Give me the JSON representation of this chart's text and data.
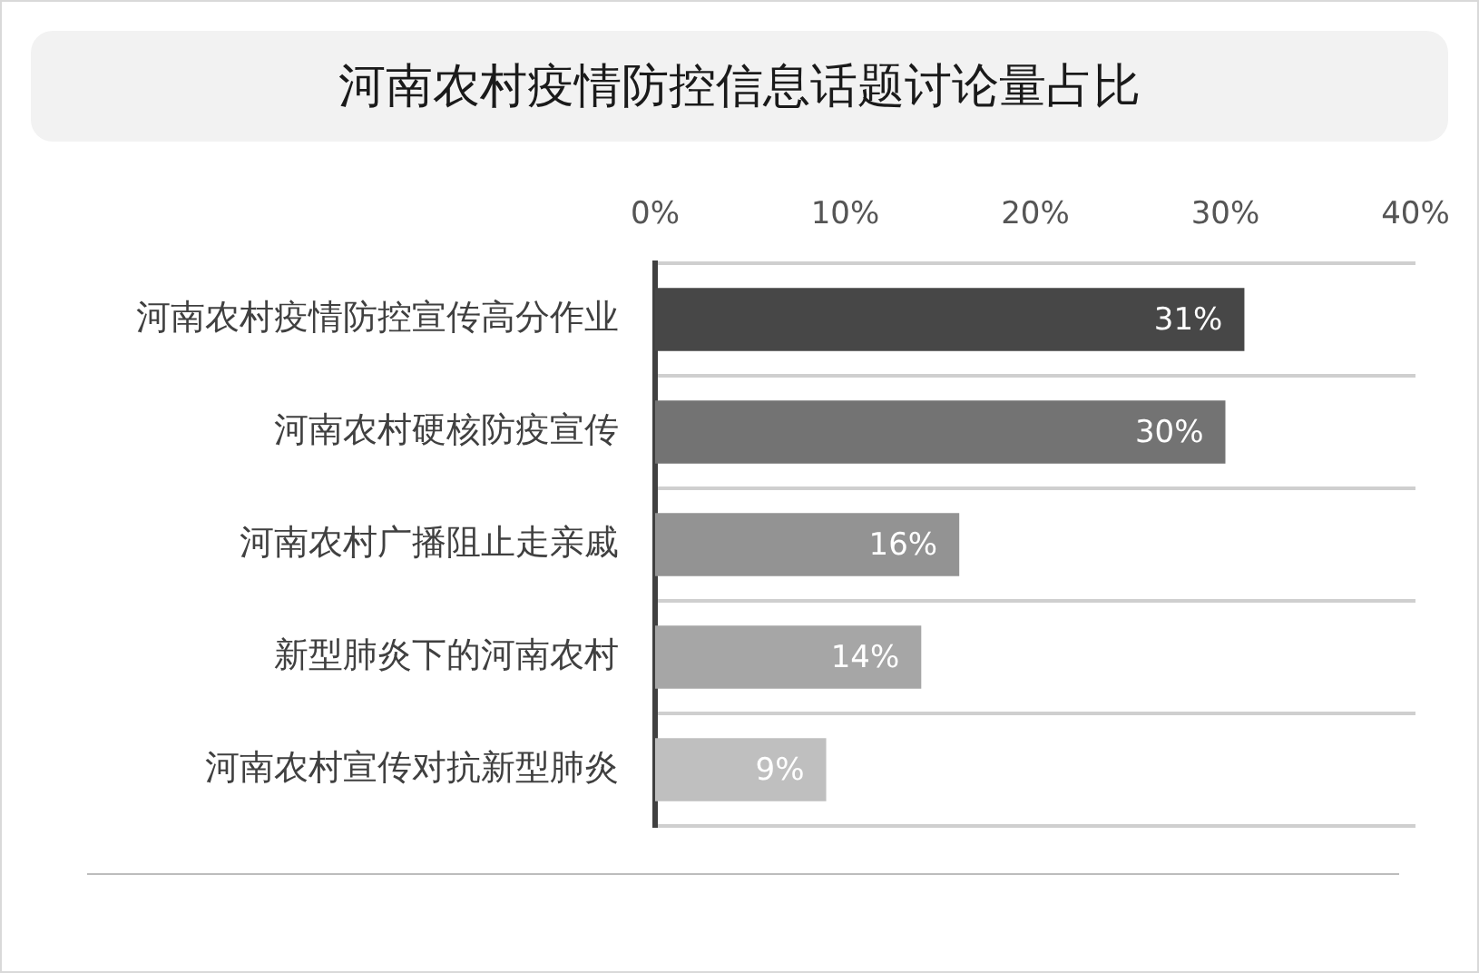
{
  "chart_data": {
    "type": "bar",
    "orientation": "horizontal",
    "title": "河南农村疫情防控信息话题讨论量占比",
    "categories": [
      "河南农村疫情防控宣传高分作业",
      "河南农村硬核防疫宣传",
      "河南农村广播阻止走亲戚",
      "新型肺炎下的河南农村",
      "河南农村宣传对抗新型肺炎"
    ],
    "values": [
      31,
      30,
      16,
      14,
      9
    ],
    "value_labels": [
      "31%",
      "30%",
      "16%",
      "14%",
      "9%"
    ],
    "colors": [
      "#474747",
      "#737373",
      "#939393",
      "#a6a6a6",
      "#bfbfbf"
    ],
    "xlim": [
      0,
      40
    ],
    "xticks": [
      {
        "value": 0,
        "label": "0%"
      },
      {
        "value": 10,
        "label": "10%"
      },
      {
        "value": 20,
        "label": "20%"
      },
      {
        "value": 30,
        "label": "30%"
      },
      {
        "value": 40,
        "label": "40%"
      }
    ],
    "grid": "y"
  }
}
